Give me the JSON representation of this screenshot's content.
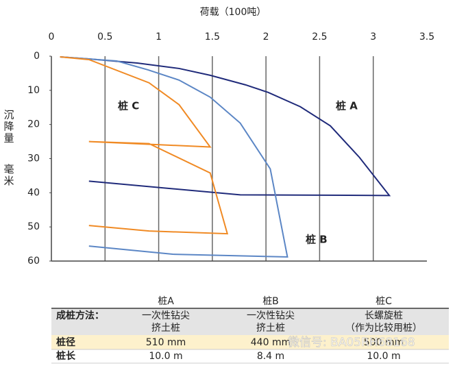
{
  "chart_data": {
    "type": "line",
    "title": "荷载（100吨）",
    "y_label": [
      "沉降量",
      "毫米"
    ],
    "xlim": [
      0,
      3.5
    ],
    "xticks": [
      0,
      0.5,
      1.0,
      1.5,
      2.0,
      2.5,
      3.0,
      3.5
    ],
    "ylim": [
      0,
      60
    ],
    "yticks": [
      0,
      10,
      20,
      30,
      40,
      50,
      60
    ],
    "y_reversed": true,
    "grid": true,
    "series": [
      {
        "name": "桩 A",
        "color": "#1f2a7a",
        "x": [
          0.08,
          0.35,
          0.8,
          1.19,
          1.48,
          1.81,
          2.02,
          2.32,
          2.6,
          2.87,
          3.15,
          1.76,
          0.35
        ],
        "y": [
          0.2,
          0.8,
          2,
          3.6,
          5.6,
          8.4,
          10.6,
          14.8,
          20.4,
          29.6,
          40.8,
          40.6,
          36.6
        ]
      },
      {
        "name": "桩 B",
        "color": "#5b86c5",
        "x": [
          0.08,
          0.61,
          0.9,
          1.19,
          1.48,
          1.76,
          2.04,
          2.2,
          1.13,
          0.35
        ],
        "y": [
          0.2,
          1.4,
          4,
          7,
          12,
          19.6,
          33,
          58.8,
          58,
          55.6
        ]
      },
      {
        "name": "桩 C",
        "color": "#f08a24",
        "x": [
          0.08,
          0.35,
          0.91,
          1.19,
          1.48,
          0.35,
          0.91,
          1.48,
          1.64,
          0.91,
          0.35
        ],
        "y": [
          0.2,
          1,
          7.8,
          14.2,
          26.6,
          25,
          25.6,
          34.2,
          52,
          51.2,
          49.6
        ]
      }
    ]
  },
  "table": {
    "header": [
      "桩A",
      "桩B",
      "桩C"
    ],
    "rows": [
      {
        "label": "成桩方法：",
        "cells": [
          [
            "一次性钻尖",
            "挤土桩"
          ],
          [
            "一次性钻尖",
            "挤土桩"
          ],
          [
            "长螺旋桩",
            "（作为比较用桩）"
          ]
        ]
      },
      {
        "label": "桩径",
        "cells": [
          [
            "510 mm"
          ],
          [
            "440 mm"
          ],
          [
            "500 mm"
          ]
        ]
      },
      {
        "label": "桩长",
        "cells": [
          [
            "10.0 m"
          ],
          [
            "8.4 m"
          ],
          [
            "10.0 m"
          ]
        ]
      }
    ]
  },
  "watermark": "微信号: BA05RH68168"
}
